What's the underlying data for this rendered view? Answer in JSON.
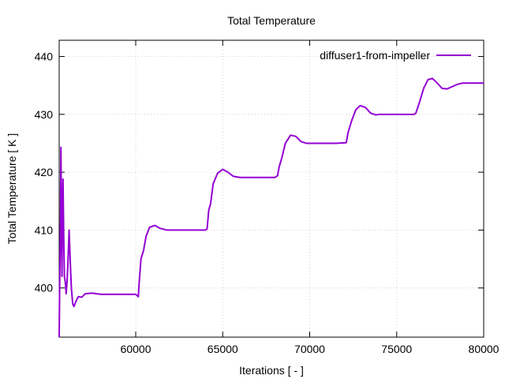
{
  "chart_data": {
    "type": "line",
    "title": "Total Temperature",
    "xlabel": "Iterations [ - ]",
    "ylabel": "Total Temperature [ K ]",
    "xlim": [
      55600,
      80000
    ],
    "ylim": [
      391.5,
      442.8
    ],
    "xticks": [
      60000,
      65000,
      70000,
      75000,
      80000
    ],
    "yticks": [
      400,
      410,
      420,
      430,
      440
    ],
    "grid": true,
    "legend_position": "top-right",
    "series": [
      {
        "name": "diffuser1-from-impeller",
        "color": "#9400d3",
        "points": [
          [
            55600,
            391.5
          ],
          [
            55630,
            401.0
          ],
          [
            55670,
            410.0
          ],
          [
            55700,
            424.3
          ],
          [
            55730,
            412.0
          ],
          [
            55760,
            402.0
          ],
          [
            55790,
            413.0
          ],
          [
            55820,
            418.8
          ],
          [
            55860,
            409.0
          ],
          [
            55900,
            402.0
          ],
          [
            55950,
            401.0
          ],
          [
            56000,
            399.0
          ],
          [
            56050,
            401.0
          ],
          [
            56100,
            404.0
          ],
          [
            56170,
            410.0
          ],
          [
            56230,
            405.0
          ],
          [
            56300,
            400.0
          ],
          [
            56380,
            397.2
          ],
          [
            56450,
            396.8
          ],
          [
            56550,
            397.6
          ],
          [
            56700,
            398.5
          ],
          [
            56900,
            398.4
          ],
          [
            57100,
            399.0
          ],
          [
            57500,
            399.1
          ],
          [
            58000,
            398.9
          ],
          [
            59000,
            398.9
          ],
          [
            60000,
            398.9
          ],
          [
            60150,
            398.5
          ],
          [
            60200,
            401.0
          ],
          [
            60300,
            405.0
          ],
          [
            60450,
            406.5
          ],
          [
            60600,
            409.0
          ],
          [
            60800,
            410.5
          ],
          [
            61100,
            410.8
          ],
          [
            61400,
            410.3
          ],
          [
            61800,
            410.0
          ],
          [
            62500,
            410.0
          ],
          [
            63500,
            410.0
          ],
          [
            64000,
            410.0
          ],
          [
            64100,
            410.2
          ],
          [
            64200,
            413.5
          ],
          [
            64300,
            414.5
          ],
          [
            64450,
            418.0
          ],
          [
            64700,
            419.8
          ],
          [
            65000,
            420.5
          ],
          [
            65300,
            420.0
          ],
          [
            65600,
            419.3
          ],
          [
            66000,
            419.1
          ],
          [
            67000,
            419.1
          ],
          [
            68000,
            419.1
          ],
          [
            68150,
            419.4
          ],
          [
            68250,
            421.0
          ],
          [
            68400,
            422.5
          ],
          [
            68600,
            425.0
          ],
          [
            68900,
            426.4
          ],
          [
            69200,
            426.2
          ],
          [
            69500,
            425.3
          ],
          [
            69800,
            425.0
          ],
          [
            70500,
            425.0
          ],
          [
            71500,
            425.0
          ],
          [
            72100,
            425.1
          ],
          [
            72200,
            426.8
          ],
          [
            72400,
            428.8
          ],
          [
            72650,
            430.8
          ],
          [
            72900,
            431.5
          ],
          [
            73200,
            431.2
          ],
          [
            73500,
            430.2
          ],
          [
            73800,
            429.9
          ],
          [
            74000,
            430.0
          ],
          [
            75000,
            430.0
          ],
          [
            76000,
            430.0
          ],
          [
            76100,
            430.2
          ],
          [
            76300,
            432.0
          ],
          [
            76550,
            434.5
          ],
          [
            76800,
            436.0
          ],
          [
            77050,
            436.2
          ],
          [
            77300,
            435.5
          ],
          [
            77600,
            434.5
          ],
          [
            77900,
            434.4
          ],
          [
            78200,
            434.8
          ],
          [
            78500,
            435.2
          ],
          [
            78800,
            435.4
          ],
          [
            79200,
            435.4
          ],
          [
            80000,
            435.4
          ]
        ]
      }
    ]
  }
}
